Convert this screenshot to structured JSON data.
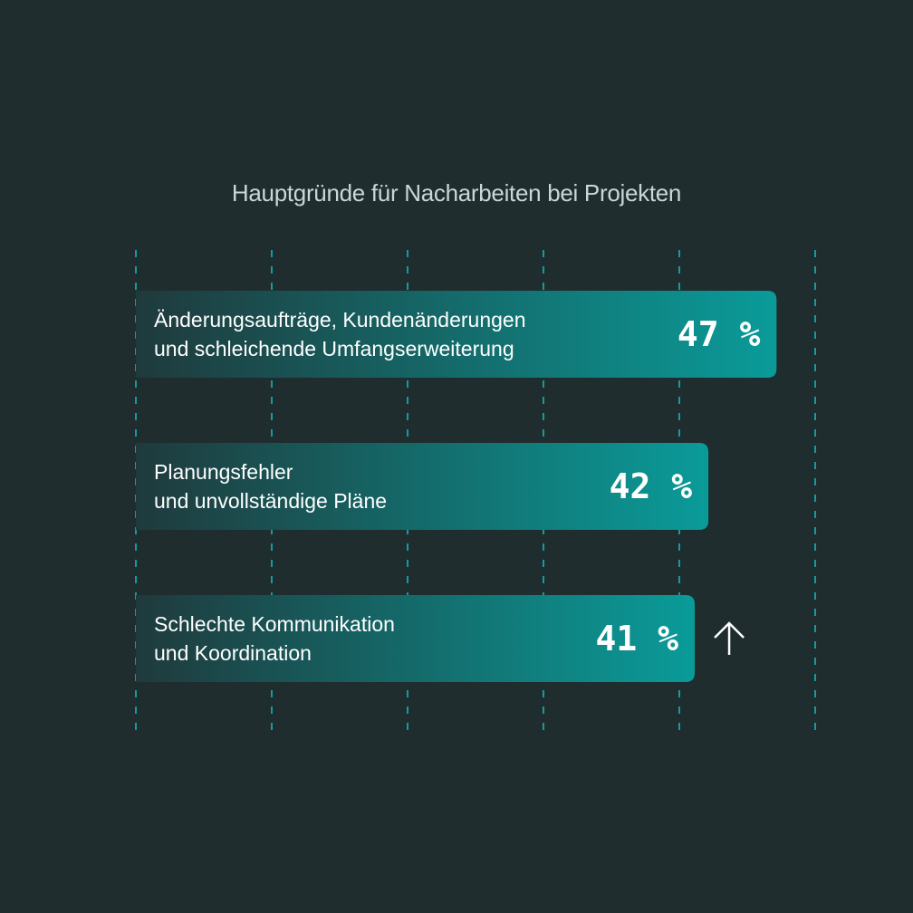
{
  "chart_data": {
    "type": "bar",
    "orientation": "horizontal",
    "title": "Hauptgründe für Nacharbeiten bei Projekten",
    "categories": [
      [
        "Änderungsaufträge, Kundenänderungen",
        "und schleichende Umfangserweiterung"
      ],
      [
        "Planungsfehler",
        "und unvollständige Pläne"
      ],
      [
        "Schlechte Kommunikation",
        "und Koordination"
      ]
    ],
    "values": [
      47,
      42,
      41
    ],
    "value_labels": [
      "47 %",
      "42 %",
      "41 %"
    ],
    "xlim": [
      0,
      50
    ],
    "grid": true,
    "grid_style": "dashed-vertical",
    "annotation": {
      "index": 2,
      "icon": "arrow-up-icon"
    },
    "colors": {
      "background": "#1f2d2e",
      "bar_start": "#1f3a3c",
      "bar_end": "#0a9b99",
      "grid": "#139c9f",
      "title": "#c9d8d6",
      "text": "#ffffff"
    }
  }
}
